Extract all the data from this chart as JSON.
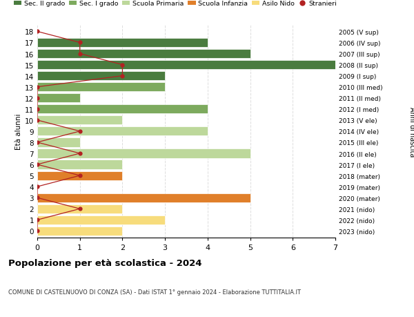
{
  "ages": [
    18,
    17,
    16,
    15,
    14,
    13,
    12,
    11,
    10,
    9,
    8,
    7,
    6,
    5,
    4,
    3,
    2,
    1,
    0
  ],
  "right_labels": [
    "2005 (V sup)",
    "2006 (IV sup)",
    "2007 (III sup)",
    "2008 (II sup)",
    "2009 (I sup)",
    "2010 (III med)",
    "2011 (II med)",
    "2012 (I med)",
    "2013 (V ele)",
    "2014 (IV ele)",
    "2015 (III ele)",
    "2016 (II ele)",
    "2017 (I ele)",
    "2018 (mater)",
    "2019 (mater)",
    "2020 (mater)",
    "2021 (nido)",
    "2022 (nido)",
    "2023 (nido)"
  ],
  "bar_values": [
    0,
    4,
    5,
    7,
    3,
    3,
    1,
    4,
    2,
    4,
    1,
    5,
    2,
    2,
    0,
    5,
    2,
    3,
    2
  ],
  "bar_colors": [
    "#4a7c3f",
    "#4a7c3f",
    "#4a7c3f",
    "#4a7c3f",
    "#4a7c3f",
    "#7daa5e",
    "#7daa5e",
    "#7daa5e",
    "#bdd89b",
    "#bdd89b",
    "#bdd89b",
    "#bdd89b",
    "#bdd89b",
    "#e07f2a",
    "#e07f2a",
    "#e07f2a",
    "#f7dc7c",
    "#f7dc7c",
    "#f7dc7c"
  ],
  "stranieri_values": [
    0,
    1,
    1,
    2,
    2,
    0,
    0,
    0,
    0,
    1,
    0,
    1,
    0,
    1,
    0,
    0,
    1,
    0,
    0
  ],
  "stranieri_color": "#b22222",
  "legend_labels": [
    "Sec. II grado",
    "Sec. I grado",
    "Scuola Primaria",
    "Scuola Infanzia",
    "Asilo Nido",
    "Stranieri"
  ],
  "legend_colors": [
    "#4a7c3f",
    "#7daa5e",
    "#bdd89b",
    "#e07f2a",
    "#f7dc7c",
    "#b22222"
  ],
  "title": "Popolazione per età scolastica - 2024",
  "subtitle": "COMUNE DI CASTELNUOVO DI CONZA (SA) - Dati ISTAT 1° gennaio 2024 - Elaborazione TUTTITALIA.IT",
  "ylabel": "Età alunni",
  "right_ylabel": "Anni di nascita",
  "xlim": [
    0,
    7
  ],
  "xticks": [
    0,
    1,
    2,
    3,
    4,
    5,
    6,
    7
  ],
  "bg_color": "#ffffff",
  "grid_color": "#dddddd"
}
